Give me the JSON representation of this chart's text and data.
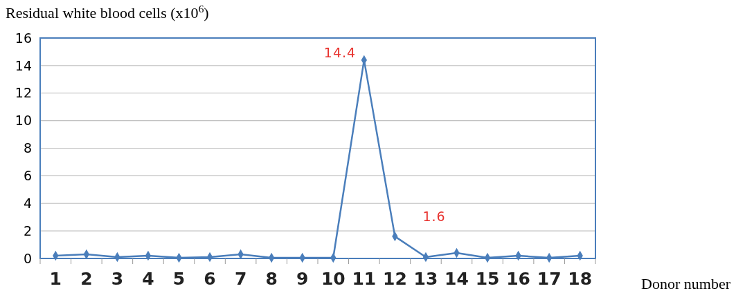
{
  "chart_data": {
    "type": "line",
    "ylabel": "Residual white blood cells (x10$^{6}$)",
    "xlabel": "Donor number",
    "categories": [
      "1",
      "2",
      "3",
      "4",
      "5",
      "6",
      "7",
      "8",
      "9",
      "10",
      "11",
      "12",
      "13",
      "14",
      "15",
      "16",
      "17",
      "18"
    ],
    "series": [
      {
        "color": "#4a7ebb",
        "values": [
          0.2,
          0.3,
          0.1,
          0.2,
          0.05,
          0.1,
          0.3,
          0.05,
          0.05,
          0.05,
          14.4,
          1.6,
          0.1,
          0.4,
          0.05,
          0.2,
          0.05,
          0.2
        ],
        "value_labels": [
          null,
          null,
          null,
          null,
          null,
          null,
          null,
          null,
          null,
          null,
          "14.4",
          "1.6",
          null,
          null,
          null,
          null,
          null,
          null
        ]
      }
    ],
    "ylim": [
      0,
      16
    ],
    "yticks": [
      0,
      2,
      4,
      6,
      8,
      10,
      12,
      14,
      16
    ],
    "grid": "y",
    "marker": "diamond",
    "line_style": "solid"
  }
}
